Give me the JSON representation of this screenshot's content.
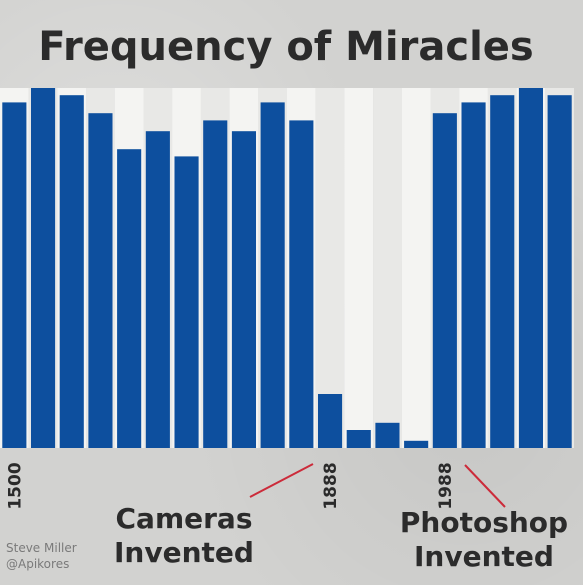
{
  "chart_data": {
    "type": "bar",
    "title": "Frequency of Miracles",
    "xlabel": "",
    "ylabel": "",
    "grid": false,
    "legend": "none",
    "ylim": [
      0,
      100
    ],
    "categories": [
      "",
      "",
      "",
      "",
      "",
      "",
      "",
      "",
      "",
      "",
      "",
      "",
      "",
      "",
      "",
      "",
      "",
      "",
      "",
      ""
    ],
    "values": [
      96,
      100,
      98,
      93,
      83,
      88,
      81,
      91,
      88,
      96,
      91,
      15,
      5,
      7,
      2,
      93,
      96,
      98,
      100,
      98
    ],
    "tick_labels": [
      {
        "text": "1500",
        "index": 0
      },
      {
        "text": "1888",
        "index": 11
      },
      {
        "text": "1988",
        "index": 15
      }
    ],
    "annotations": [
      {
        "text": "Cameras Invented",
        "lines": [
          "Cameras",
          "Invented"
        ],
        "points_to": "1888"
      },
      {
        "text": "Photoshop Invented",
        "lines": [
          "Photoshop",
          "Invented"
        ],
        "points_to": "1988"
      }
    ],
    "credit": [
      "Steve Miller",
      "@Apikores"
    ]
  },
  "colors": {
    "bar": "#0d4f9e",
    "column_light": "#f4f4f2",
    "column_dark": "#e8e8e6",
    "annotation_line": "#cc2b3a",
    "text": "#2b2b2b"
  }
}
